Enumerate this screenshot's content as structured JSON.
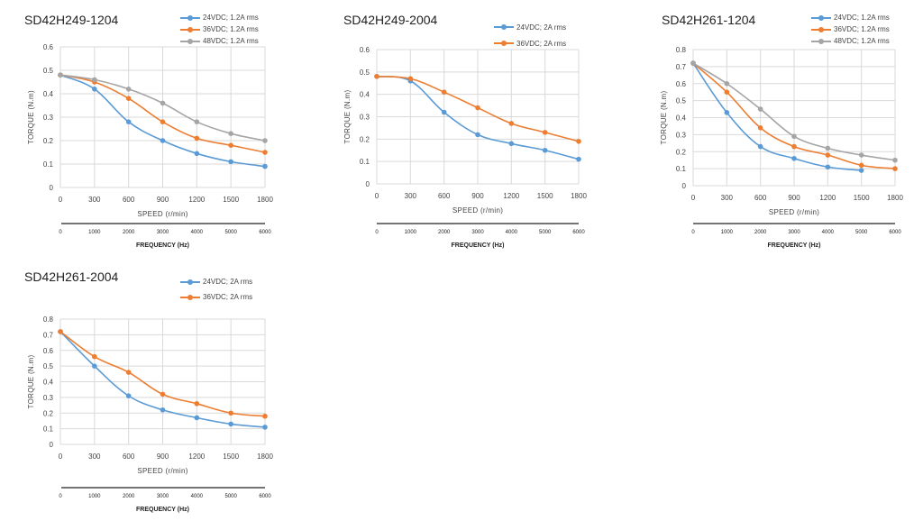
{
  "colors": {
    "blue": "#5b9bd5",
    "orange": "#ed7d31",
    "gray": "#a5a5a5",
    "grid": "#d9d9d9"
  },
  "chart_data": [
    {
      "type": "line",
      "title": "SD42H249-1204",
      "xlabel": "SPEED (r/min)",
      "ylabel": "TORQUE (N.m)",
      "x": [
        0,
        300,
        600,
        900,
        1200,
        1500,
        1800
      ],
      "ylim": [
        0,
        0.6
      ],
      "yticks": [
        0,
        0.1,
        0.2,
        0.3,
        0.4,
        0.5,
        0.6
      ],
      "series": [
        {
          "name": "24VDC; 1.2A rms",
          "color": "blue",
          "values": [
            0.48,
            0.42,
            0.28,
            0.2,
            0.145,
            0.11,
            0.09
          ]
        },
        {
          "name": "36VDC; 1.2A rms",
          "color": "orange",
          "values": [
            0.48,
            0.45,
            0.38,
            0.28,
            0.21,
            0.18,
            0.15
          ]
        },
        {
          "name": "48VDC; 1.2A rms",
          "color": "gray",
          "values": [
            0.48,
            0.46,
            0.42,
            0.36,
            0.28,
            0.23,
            0.2
          ]
        }
      ],
      "freq_axis": {
        "label": "FREQUENCY (Hz)",
        "ticks": [
          "0",
          "1000",
          "2000",
          "3000",
          "4000",
          "5000",
          "6000"
        ]
      }
    },
    {
      "type": "line",
      "title": "SD42H249-2004",
      "xlabel": "SPEED (r/min)",
      "ylabel": "TORQUE (N.m)",
      "x": [
        0,
        300,
        600,
        900,
        1200,
        1500,
        1800
      ],
      "ylim": [
        0,
        0.6
      ],
      "yticks": [
        0,
        0.1,
        0.2,
        0.3,
        0.4,
        0.5,
        0.6
      ],
      "series": [
        {
          "name": "24VDC; 2A rms",
          "color": "blue",
          "values": [
            0.48,
            0.46,
            0.32,
            0.22,
            0.18,
            0.15,
            0.11
          ]
        },
        {
          "name": "36VDC; 2A rms",
          "color": "orange",
          "values": [
            0.48,
            0.47,
            0.41,
            0.34,
            0.27,
            0.23,
            0.19
          ]
        }
      ],
      "freq_axis": {
        "label": "FREQUENCY (Hz)",
        "ticks": [
          "0",
          "1000",
          "2000",
          "3000",
          "4000",
          "5000",
          "6000"
        ]
      }
    },
    {
      "type": "line",
      "title": "SD42H261-1204",
      "xlabel": "SPEED (r/min)",
      "ylabel": "TORQUE (N.m)",
      "x": [
        0,
        300,
        600,
        900,
        1200,
        1500,
        1800
      ],
      "ylim": [
        0,
        0.8
      ],
      "yticks": [
        0,
        0.1,
        0.2,
        0.3,
        0.4,
        0.5,
        0.6,
        0.7,
        0.8
      ],
      "series": [
        {
          "name": "24VDC; 1.2A rms",
          "color": "blue",
          "values": [
            0.72,
            0.43,
            0.23,
            0.16,
            0.11,
            0.09,
            null
          ]
        },
        {
          "name": "36VDC; 1.2A rms",
          "color": "orange",
          "values": [
            0.72,
            0.55,
            0.34,
            0.23,
            0.18,
            0.12,
            0.1
          ]
        },
        {
          "name": "48VDC; 1.2A rms",
          "color": "gray",
          "values": [
            0.72,
            0.6,
            0.45,
            0.29,
            0.22,
            0.18,
            0.15
          ]
        }
      ],
      "freq_axis": {
        "label": "FREQUENCY (Hz)",
        "ticks": [
          "0",
          "1000",
          "2000",
          "3000",
          "4000",
          "5000",
          "6000"
        ]
      }
    },
    {
      "type": "line",
      "title": "SD42H261-2004",
      "xlabel": "SPEED (r/min)",
      "ylabel": "TORQUE (N.m)",
      "x": [
        0,
        300,
        600,
        900,
        1200,
        1500,
        1800
      ],
      "ylim": [
        0,
        0.8
      ],
      "yticks": [
        0,
        0.1,
        0.2,
        0.3,
        0.4,
        0.5,
        0.6,
        0.7,
        0.8
      ],
      "series": [
        {
          "name": "24VDC; 2A rms",
          "color": "blue",
          "values": [
            0.72,
            0.5,
            0.31,
            0.22,
            0.17,
            0.13,
            0.11
          ]
        },
        {
          "name": "36VDC; 2A rms",
          "color": "orange",
          "values": [
            0.72,
            0.56,
            0.46,
            0.32,
            0.26,
            0.2,
            0.18
          ]
        }
      ],
      "freq_axis": {
        "label": "FREQUENCY (Hz)",
        "ticks": [
          "0",
          "1000",
          "2000",
          "3000",
          "4000",
          "5000",
          "6000"
        ]
      }
    }
  ]
}
